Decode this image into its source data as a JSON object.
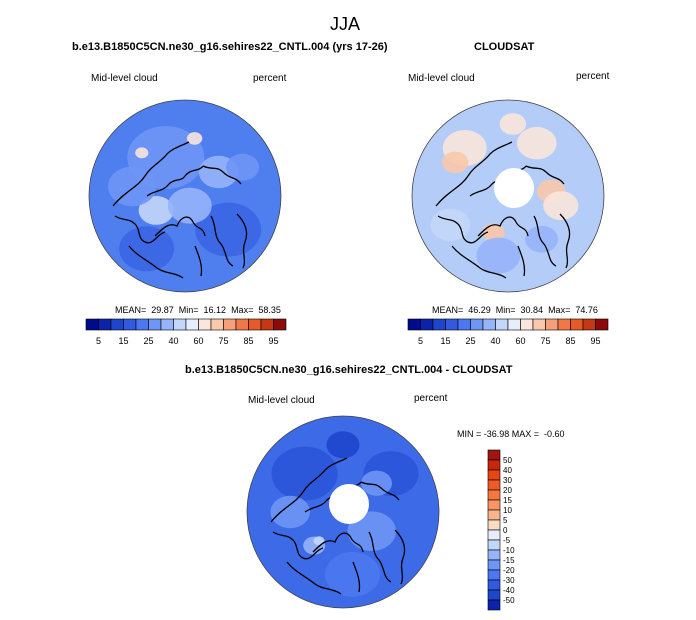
{
  "figure": {
    "season": "JJA",
    "left_title": "b.e13.B1850C5CN.ne30_g16.sehires22_CNTL.004 (yrs 17-26)",
    "right_title": "CLOUDSAT",
    "diff_title": "b.e13.B1850C5CN.ne30_g16.sehires22_CNTL.004 - CLOUDSAT"
  },
  "panels": {
    "model": {
      "variable": "Mid-level cloud",
      "units": "percent",
      "stats": "MEAN=  29.87  Min=  16.12  Max=  58.35"
    },
    "obs": {
      "variable": "Mid-level cloud",
      "units": "percent",
      "stats": "MEAN=  46.29  Min=  30.84  Max=  74.76"
    },
    "diff": {
      "variable": "Mid-level cloud",
      "units": "percent",
      "stats": "MIN = -36.98 MAX =  -0.60"
    }
  },
  "colorbars": {
    "horizontal": {
      "tick_labels": [
        "5",
        "15",
        "25",
        "40",
        "60",
        "75",
        "85",
        "95"
      ],
      "colors": [
        "#000a8c",
        "#0a23aa",
        "#1e46cd",
        "#325ae1",
        "#4b78f0",
        "#6e96f5",
        "#96b4fa",
        "#c3d7fa",
        "#e6eefb",
        "#fae6dc",
        "#fac8aa",
        "#f5a078",
        "#f07846",
        "#e65a28",
        "#c83714",
        "#8c0a0a"
      ]
    },
    "vertical": {
      "tick_labels": [
        "50",
        "40",
        "30",
        "20",
        "15",
        "10",
        "5",
        "0",
        "-5",
        "-10",
        "-15",
        "-20",
        "-30",
        "-40",
        "-50"
      ],
      "colors": [
        "#a01414",
        "#c8280a",
        "#e64614",
        "#f05a28",
        "#f5783c",
        "#fa9664",
        "#fab48c",
        "#fadcc3",
        "#e6eefb",
        "#c3d7fa",
        "#96b4fa",
        "#6e96f5",
        "#4b78f0",
        "#325ae1",
        "#1e46cd",
        "#0a23aa"
      ]
    }
  },
  "maps": {
    "model": {
      "base": "#4f7fef",
      "patches": [
        [
          "#6e96f5",
          -0.2,
          -0.4,
          0.35
        ],
        [
          "#96b4fa",
          0.35,
          -0.25,
          0.18
        ],
        [
          "#c3d7fa",
          -0.3,
          0.15,
          0.16
        ],
        [
          "#3a66e4",
          0.45,
          0.35,
          0.3
        ],
        [
          "#6e96f5",
          -0.55,
          -0.1,
          0.22
        ],
        [
          "#fae6dc",
          0.1,
          -0.6,
          0.07
        ],
        [
          "#fae6dc",
          -0.45,
          -0.45,
          0.06
        ],
        [
          "#3a66e4",
          -0.4,
          0.55,
          0.25
        ],
        [
          "#96b4fa",
          0.05,
          0.1,
          0.2
        ],
        [
          "#6e96f5",
          0.6,
          -0.3,
          0.15
        ]
      ]
    },
    "obs": {
      "base": "#b4cdf8",
      "patches": [
        [
          "#fae6dc",
          -0.45,
          -0.5,
          0.2
        ],
        [
          "#fac8aa",
          -0.55,
          -0.35,
          0.12
        ],
        [
          "#fae6dc",
          0.3,
          -0.55,
          0.18
        ],
        [
          "#fac8aa",
          0.45,
          -0.05,
          0.13
        ],
        [
          "#fae6dc",
          0.55,
          0.1,
          0.16
        ],
        [
          "#fac8aa",
          -0.15,
          0.38,
          0.1
        ],
        [
          "#96b4fa",
          -0.1,
          0.62,
          0.2
        ],
        [
          "#96b4fa",
          0.35,
          0.45,
          0.15
        ],
        [
          "#c3d7fa",
          -0.6,
          0.3,
          0.18
        ],
        [
          "#fae6dc",
          0.05,
          -0.75,
          0.12
        ]
      ]
    },
    "diff": {
      "base": "#3d6ae6",
      "patches": [
        [
          "#2a55d8",
          -0.4,
          -0.4,
          0.3
        ],
        [
          "#6e96f5",
          0.3,
          0.2,
          0.22
        ],
        [
          "#96b4fa",
          -0.3,
          0.35,
          0.1
        ],
        [
          "#c3d7fa",
          -0.25,
          0.3,
          0.05
        ],
        [
          "#2a55d8",
          0.5,
          -0.4,
          0.25
        ],
        [
          "#6e96f5",
          -0.55,
          0.0,
          0.18
        ],
        [
          "#1e46cd",
          0.0,
          -0.7,
          0.15
        ],
        [
          "#6e96f5",
          0.35,
          -0.3,
          0.14
        ],
        [
          "#4b78f0",
          0.1,
          0.65,
          0.25
        ]
      ]
    }
  }
}
